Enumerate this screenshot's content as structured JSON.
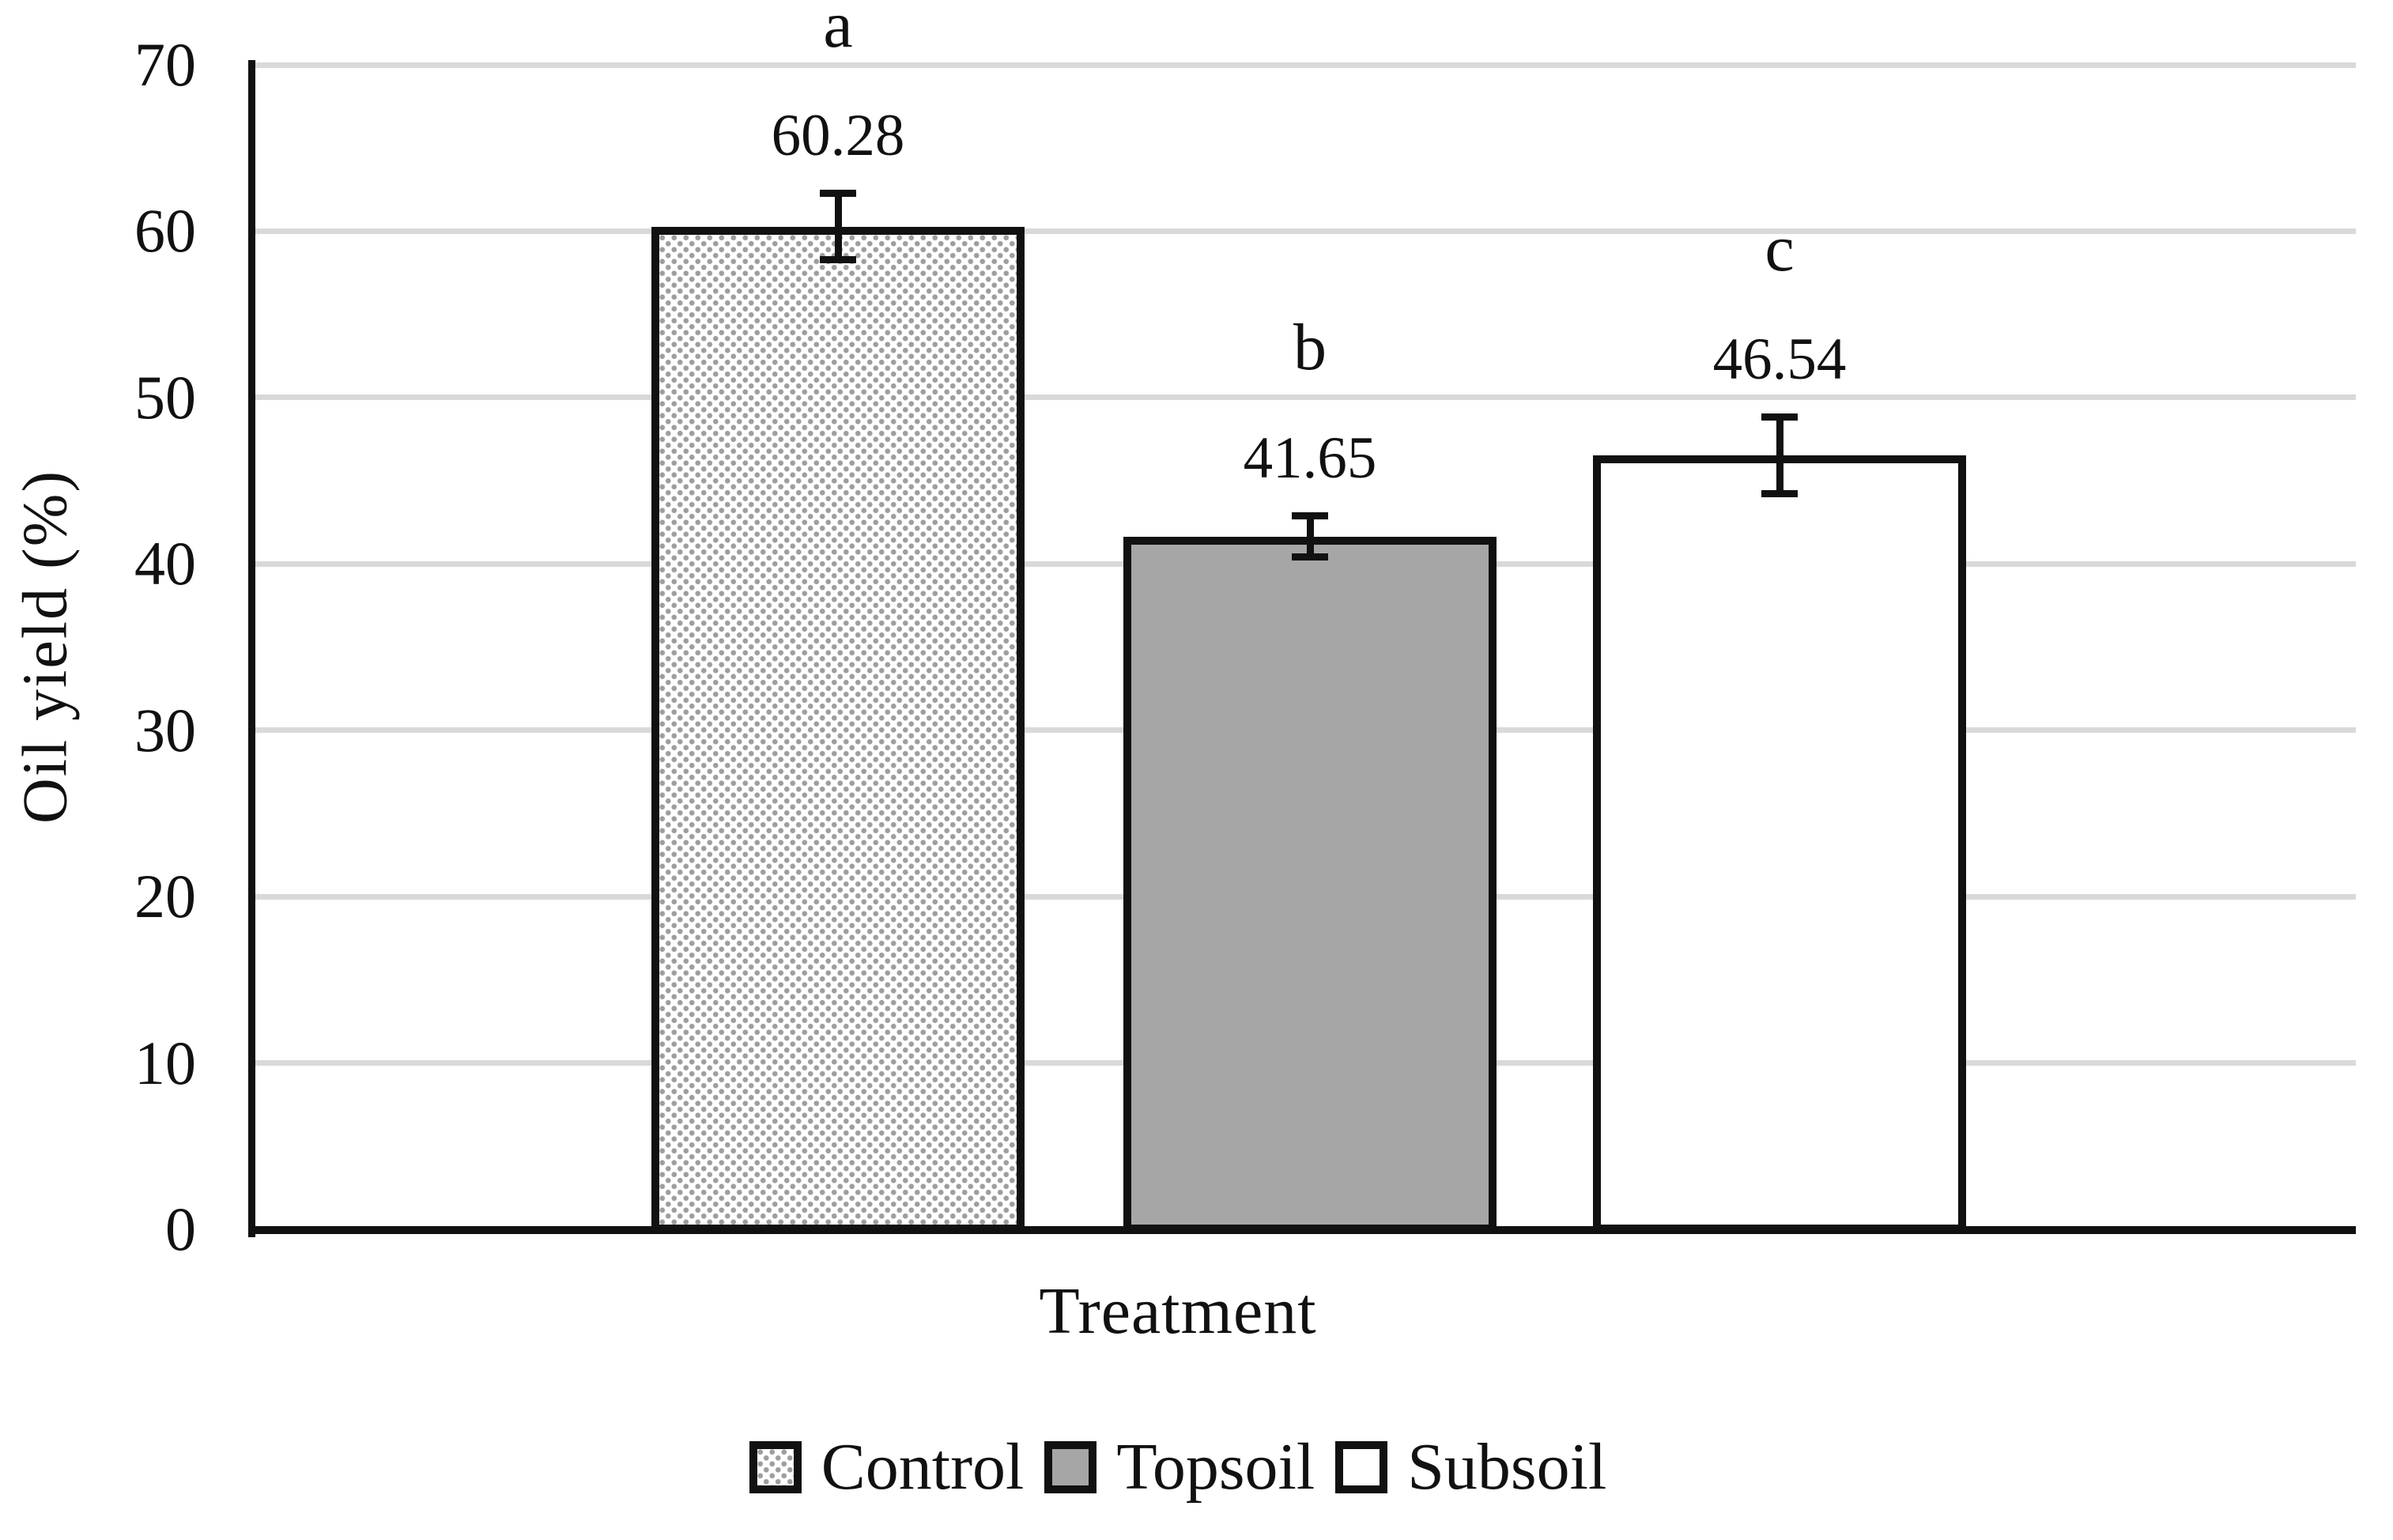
{
  "figure": {
    "background": "#ffffff"
  },
  "chart_data": {
    "type": "bar",
    "title": "",
    "categories": [
      "Control",
      "Topsoil",
      "Subsoil"
    ],
    "values": [
      60.28,
      41.65,
      46.54
    ],
    "value_labels": [
      "60.28",
      "41.65",
      "46.54"
    ],
    "significance_letters": [
      "a",
      "b",
      "c"
    ],
    "error_bars_plus_minus": [
      2.0,
      1.25,
      2.3
    ],
    "xlabel": "Treatment",
    "ylabel": "Oil yield (%)",
    "ylim": [
      0,
      70
    ],
    "yticks": [
      "0",
      "10",
      "20",
      "30",
      "40",
      "50",
      "60",
      "70"
    ],
    "grid": "horizontal-gridlines-on",
    "legend_position": "bottom-center",
    "legend": [
      {
        "label": "Control",
        "fill": "dotted-pattern"
      },
      {
        "label": "Topsoil",
        "fill": "#a6a6a6"
      },
      {
        "label": "Subsoil",
        "fill": "#ffffff"
      }
    ],
    "colors": {
      "bar_border": "#111111",
      "gridline": "#d9d9d9",
      "axis": "#111111",
      "text": "#111111",
      "topsoil_fill": "#a6a6a6",
      "pattern_dot": "#9e9e9e"
    }
  }
}
